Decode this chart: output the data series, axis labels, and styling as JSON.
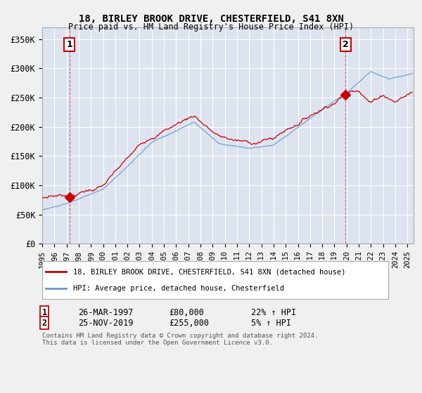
{
  "title1": "18, BIRLEY BROOK DRIVE, CHESTERFIELD, S41 8XN",
  "title2": "Price paid vs. HM Land Registry's House Price Index (HPI)",
  "ylabel_ticks": [
    "£0",
    "£50K",
    "£100K",
    "£150K",
    "£200K",
    "£250K",
    "£300K",
    "£350K"
  ],
  "ytick_values": [
    0,
    50000,
    100000,
    150000,
    200000,
    250000,
    300000,
    350000
  ],
  "ylim": [
    0,
    370000
  ],
  "xlim_start": 1995.0,
  "xlim_end": 2025.5,
  "xtick_years": [
    1995,
    1996,
    1997,
    1998,
    1999,
    2000,
    2001,
    2002,
    2003,
    2004,
    2005,
    2006,
    2007,
    2008,
    2009,
    2010,
    2011,
    2012,
    2013,
    2014,
    2015,
    2016,
    2017,
    2018,
    2019,
    2020,
    2021,
    2022,
    2023,
    2024,
    2025
  ],
  "sale1_x": 1997.23,
  "sale1_y": 80000,
  "sale1_label": "1",
  "sale1_date": "26-MAR-1997",
  "sale1_price": "£80,000",
  "sale1_hpi": "22% ↑ HPI",
  "sale2_x": 2019.9,
  "sale2_y": 255000,
  "sale2_label": "2",
  "sale2_date": "25-NOV-2019",
  "sale2_price": "£255,000",
  "sale2_hpi": "5% ↑ HPI",
  "line1_color": "#cc0000",
  "line2_color": "#6699cc",
  "background_color": "#dde4f0",
  "grid_color": "#ffffff",
  "fig_background": "#f0f0f0",
  "legend1_label": "18, BIRLEY BROOK DRIVE, CHESTERFIELD, S41 8XN (detached house)",
  "legend2_label": "HPI: Average price, detached house, Chesterfield",
  "footer1": "Contains HM Land Registry data © Crown copyright and database right 2024.",
  "footer2": "This data is licensed under the Open Government Licence v3.0."
}
